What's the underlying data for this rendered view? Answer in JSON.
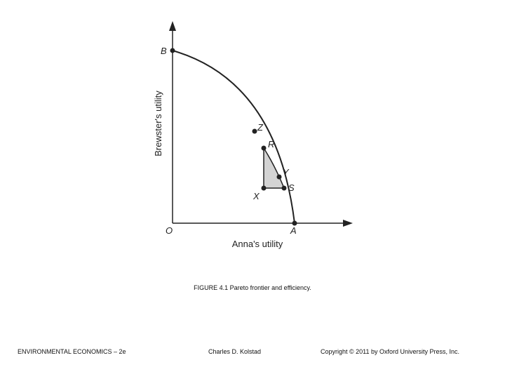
{
  "diagram": {
    "x_axis_label": "Anna's utility",
    "y_axis_label": "Brewster's utility",
    "origin_label": "O",
    "points": [
      {
        "id": "B",
        "label": "B"
      },
      {
        "id": "Z",
        "label": "Z"
      },
      {
        "id": "R",
        "label": "R"
      },
      {
        "id": "Y",
        "label": "Y"
      },
      {
        "id": "S",
        "label": "S"
      },
      {
        "id": "X",
        "label": "X"
      },
      {
        "id": "A",
        "label": "A"
      }
    ],
    "colors": {
      "curve": "#222222",
      "axes": "#222222",
      "shaded_region": "#d3d3d3"
    }
  },
  "caption": "FIGURE 4.1 Pareto frontier and efficiency.",
  "footer": {
    "left": "ENVIRONMENTAL ECONOMICS – 2e",
    "middle": "Charles D. Kolstad",
    "right": "Copyright © 2011 by Oxford University Press, Inc."
  }
}
